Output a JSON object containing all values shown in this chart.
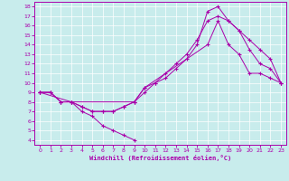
{
  "xlabel": "Windchill (Refroidissement éolien,°C)",
  "bg_color": "#c8ecec",
  "line_color": "#aa00aa",
  "xlim": [
    -0.5,
    23.5
  ],
  "ylim": [
    3.5,
    18.5
  ],
  "xticks": [
    0,
    1,
    2,
    3,
    4,
    5,
    6,
    7,
    8,
    9,
    10,
    11,
    12,
    13,
    14,
    15,
    16,
    17,
    18,
    19,
    20,
    21,
    22,
    23
  ],
  "yticks": [
    4,
    5,
    6,
    7,
    8,
    9,
    10,
    11,
    12,
    13,
    14,
    15,
    16,
    17,
    18
  ],
  "lines": [
    {
      "x": [
        0,
        1,
        2,
        3,
        4,
        5,
        6,
        7,
        8,
        9,
        10,
        11,
        12,
        13,
        14,
        15,
        16,
        17,
        18,
        19,
        20,
        21,
        22,
        23
      ],
      "y": [
        9,
        9,
        8,
        8,
        7.5,
        7,
        7,
        7,
        7.5,
        8,
        9,
        10,
        11,
        12,
        13,
        14.5,
        16.5,
        17,
        16.5,
        15.5,
        14.5,
        13.5,
        12.5,
        10
      ]
    },
    {
      "x": [
        0,
        1,
        2,
        3,
        4,
        5,
        6,
        7,
        8,
        9,
        10,
        11,
        12,
        13,
        14,
        15,
        16,
        17,
        18,
        19,
        20,
        21,
        22,
        23
      ],
      "y": [
        9,
        9,
        8,
        8,
        7.5,
        7,
        7,
        7,
        7.5,
        8,
        9.5,
        10,
        10.5,
        11.5,
        12.5,
        14,
        17.5,
        18,
        16.5,
        15.5,
        13.5,
        12,
        11.5,
        10
      ]
    },
    {
      "x": [
        0,
        3,
        9,
        10,
        16,
        17,
        18,
        19,
        20,
        21,
        22,
        23
      ],
      "y": [
        9,
        8,
        8,
        9.5,
        14,
        16.5,
        14,
        13,
        11,
        11,
        10.5,
        10
      ]
    },
    {
      "x": [
        0,
        1,
        2,
        3,
        4,
        5,
        6,
        7,
        8,
        9
      ],
      "y": [
        9,
        9,
        8,
        8,
        7,
        6.5,
        5.5,
        5,
        4.5,
        4
      ]
    }
  ]
}
